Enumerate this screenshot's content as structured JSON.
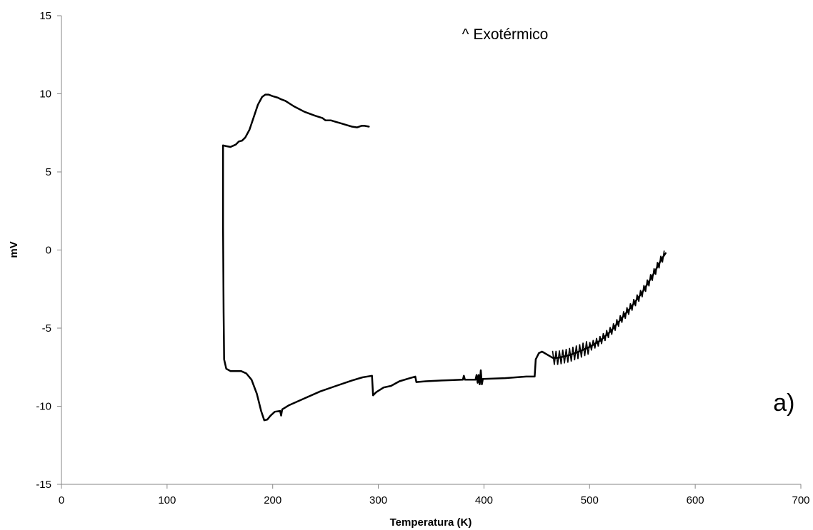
{
  "chart_data": {
    "type": "line",
    "title": "",
    "xlabel": "Temperatura (K)",
    "ylabel": "mV",
    "xlim": [
      0,
      700
    ],
    "ylim": [
      -15,
      15
    ],
    "xticks": [
      0,
      100,
      200,
      300,
      400,
      500,
      600,
      700
    ],
    "yticks": [
      -15,
      -10,
      -5,
      0,
      5,
      10,
      15
    ],
    "grid": false,
    "legend": "none",
    "annotations": [
      {
        "text": "^ Exotérmico",
        "x": 420,
        "y": 13.5
      },
      {
        "text": "a)",
        "x": 684,
        "y": -10.3
      }
    ],
    "series": [
      {
        "color": "#000000",
        "points": [
          [
            291,
            7.9
          ],
          [
            287,
            7.95
          ],
          [
            284,
            7.95
          ],
          [
            280,
            7.85
          ],
          [
            275,
            7.9
          ],
          [
            270,
            8.0
          ],
          [
            265,
            8.1
          ],
          [
            260,
            8.2
          ],
          [
            255,
            8.3
          ],
          [
            250,
            8.3
          ],
          [
            247,
            8.45
          ],
          [
            240,
            8.6
          ],
          [
            230,
            8.85
          ],
          [
            220,
            9.2
          ],
          [
            212,
            9.55
          ],
          [
            208,
            9.65
          ],
          [
            205,
            9.75
          ],
          [
            200,
            9.85
          ],
          [
            196,
            9.95
          ],
          [
            193,
            9.95
          ],
          [
            190,
            9.8
          ],
          [
            186,
            9.3
          ],
          [
            182,
            8.5
          ],
          [
            178,
            7.7
          ],
          [
            174,
            7.2
          ],
          [
            171,
            7.0
          ],
          [
            168,
            6.95
          ],
          [
            165,
            6.75
          ],
          [
            160,
            6.6
          ],
          [
            156,
            6.65
          ],
          [
            153,
            6.7
          ],
          [
            153,
            1.5
          ],
          [
            153.5,
            -4.0
          ],
          [
            154,
            -7.0
          ],
          [
            156,
            -7.6
          ],
          [
            160,
            -7.75
          ],
          [
            170,
            -7.75
          ],
          [
            175,
            -7.9
          ],
          [
            180,
            -8.3
          ],
          [
            185,
            -9.2
          ],
          [
            189,
            -10.3
          ],
          [
            192,
            -10.9
          ],
          [
            195,
            -10.85
          ],
          [
            198,
            -10.6
          ],
          [
            202,
            -10.35
          ],
          [
            207,
            -10.3
          ],
          [
            208,
            -10.6
          ],
          [
            209,
            -10.2
          ],
          [
            215,
            -9.95
          ],
          [
            230,
            -9.5
          ],
          [
            245,
            -9.05
          ],
          [
            260,
            -8.7
          ],
          [
            275,
            -8.35
          ],
          [
            285,
            -8.15
          ],
          [
            294,
            -8.05
          ],
          [
            295,
            -9.3
          ],
          [
            298,
            -9.1
          ],
          [
            305,
            -8.8
          ],
          [
            312,
            -8.7
          ],
          [
            320,
            -8.4
          ],
          [
            330,
            -8.2
          ],
          [
            335,
            -8.1
          ],
          [
            336,
            -8.45
          ],
          [
            345,
            -8.4
          ],
          [
            360,
            -8.35
          ],
          [
            380,
            -8.3
          ],
          [
            381,
            -8.05
          ],
          [
            382,
            -8.3
          ],
          [
            392,
            -8.3
          ],
          [
            393,
            -8.0
          ],
          [
            394,
            -8.5
          ],
          [
            395,
            -8.0
          ],
          [
            396,
            -8.6
          ],
          [
            397,
            -7.7
          ],
          [
            398,
            -8.6
          ],
          [
            399,
            -8.25
          ],
          [
            420,
            -8.2
          ],
          [
            440,
            -8.1
          ],
          [
            448,
            -8.1
          ],
          [
            449,
            -7.0
          ],
          [
            452,
            -6.6
          ],
          [
            455,
            -6.5
          ],
          [
            460,
            -6.7
          ],
          [
            465,
            -6.9
          ],
          [
            470,
            -6.9
          ],
          [
            480,
            -6.75
          ],
          [
            490,
            -6.5
          ],
          [
            500,
            -6.2
          ],
          [
            510,
            -5.8
          ],
          [
            520,
            -5.2
          ],
          [
            530,
            -4.4
          ],
          [
            540,
            -3.6
          ],
          [
            550,
            -2.7
          ],
          [
            560,
            -1.6
          ],
          [
            568,
            -0.6
          ],
          [
            572,
            -0.2
          ]
        ]
      }
    ]
  }
}
